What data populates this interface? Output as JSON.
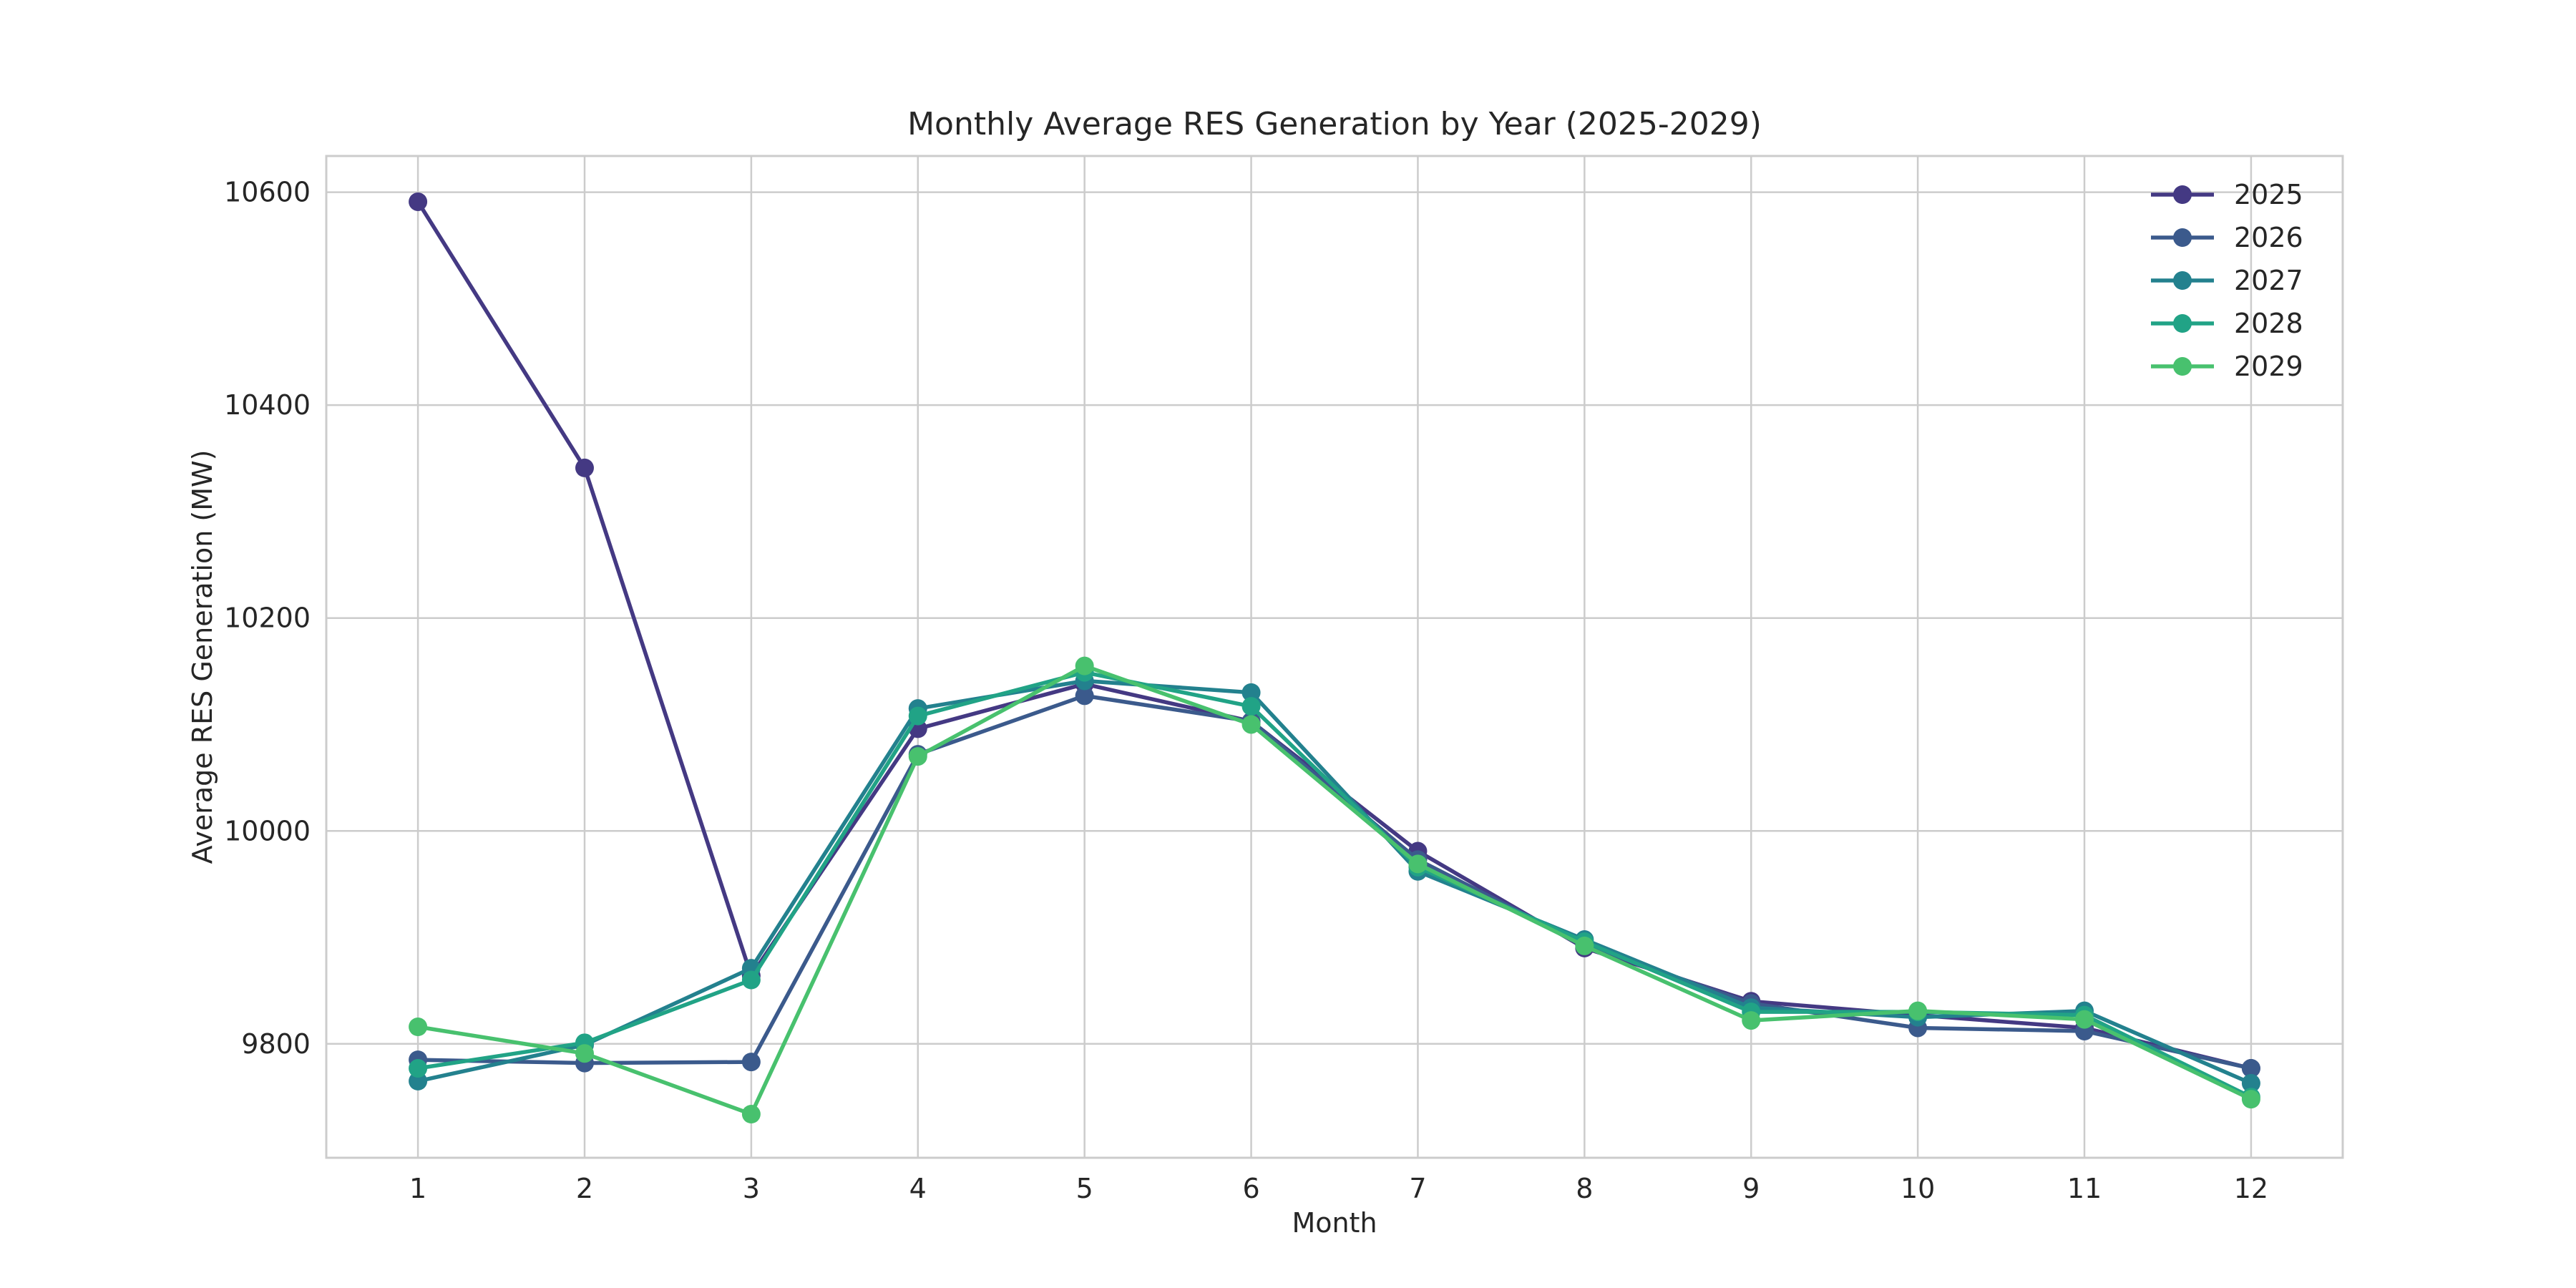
{
  "chart_data": {
    "type": "line",
    "title": "Monthly Average RES Generation by Year (2025-2029)",
    "xlabel": "Month",
    "ylabel": "Average RES Generation (MW)",
    "x": [
      1,
      2,
      3,
      4,
      5,
      6,
      7,
      8,
      9,
      10,
      11,
      12
    ],
    "xlim": [
      0.45,
      12.55
    ],
    "ylim": [
      9693,
      10634
    ],
    "yticks": [
      9800,
      10000,
      10200,
      10400,
      10600
    ],
    "grid": true,
    "legend_position": "top-right",
    "series": [
      {
        "name": "2025",
        "color": "#443983",
        "values": [
          10591,
          10341,
          9864,
          10096,
          10138,
          10103,
          9981,
          9890,
          9840,
          9827,
          9815,
          9777
        ]
      },
      {
        "name": "2026",
        "color": "#3b5a8c",
        "values": [
          9785,
          9782,
          9783,
          10072,
          10127,
          10103,
          9973,
          9893,
          9838,
          9815,
          9812,
          9777
        ]
      },
      {
        "name": "2027",
        "color": "#23818e",
        "values": [
          9765,
          9799,
          9871,
          10115,
          10141,
          10130,
          9962,
          9898,
          9834,
          9825,
          9831,
          9763
        ]
      },
      {
        "name": "2028",
        "color": "#21a386",
        "values": [
          9777,
          9801,
          9860,
          10108,
          10149,
          10117,
          9966,
          9896,
          9830,
          9830,
          9827,
          9750
        ]
      },
      {
        "name": "2029",
        "color": "#48c16e",
        "values": [
          9816,
          9791,
          9734,
          10070,
          10155,
          10100,
          9969,
          9892,
          9822,
          9831,
          9823,
          9748
        ]
      }
    ]
  }
}
